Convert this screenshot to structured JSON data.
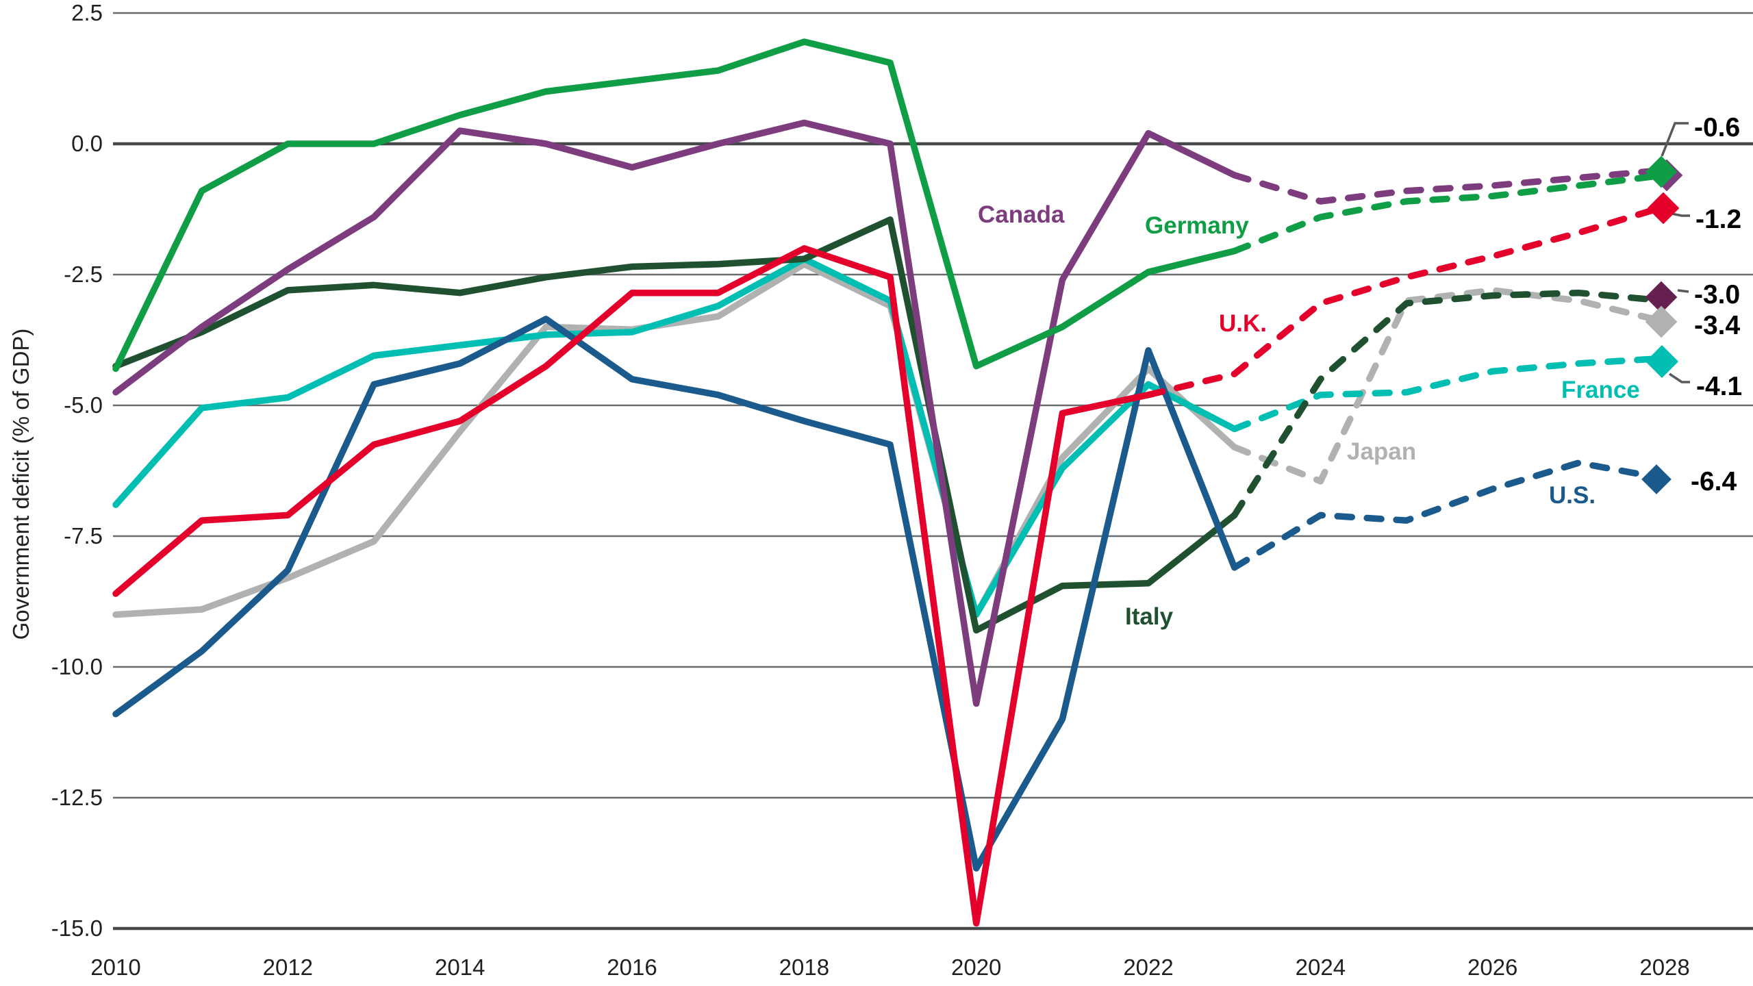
{
  "y_axis_title": "Government deficit (% of GDP)",
  "axis": {
    "y_tick_labels": [
      "2.5",
      "0.0",
      "-2.5",
      "-5.0",
      "-7.5",
      "-10.0",
      "-12.5",
      "-15.0"
    ],
    "y_tick_values": [
      2.5,
      0.0,
      -2.5,
      -5.0,
      -7.5,
      -10.0,
      -12.5,
      -15.0
    ],
    "x_tick_labels": [
      "2010",
      "2012",
      "2014",
      "2016",
      "2018",
      "2020",
      "2022",
      "2024",
      "2026",
      "2028"
    ],
    "x_tick_values": [
      2010,
      2012,
      2014,
      2016,
      2018,
      2020,
      2022,
      2024,
      2026,
      2028
    ]
  },
  "colors": {
    "grid": "#6A6B6D",
    "zero_line": "#47484A",
    "axis_line": "#47484A",
    "tick_text": "#231F20",
    "value_label_text": "#000000",
    "callout": "#58595B",
    "background": "#FFFFFF"
  },
  "chart_data": {
    "type": "line",
    "title": "",
    "xlabel": "",
    "ylabel": "Government deficit (% of GDP)",
    "xlim": [
      2010,
      2028
    ],
    "ylim": [
      -15.0,
      2.5
    ],
    "grid": "horizontal",
    "legend_position": "inline-labels",
    "note": "Solid lines are history; dashed lines after last_actual_year are projections; diamond markers at 2028 with value labels.",
    "x": [
      2010,
      2011,
      2012,
      2013,
      2014,
      2015,
      2016,
      2017,
      2018,
      2019,
      2020,
      2021,
      2022,
      2023,
      2024,
      2025,
      2026,
      2027,
      2028
    ],
    "series": [
      {
        "name": "Japan",
        "label": "Japan",
        "color": "#B0B2B2",
        "marker_color": "#B0B2B2",
        "end_label": "-3.4",
        "last_actual_year": 2023,
        "values": [
          -9.0,
          -8.9,
          -8.3,
          -7.6,
          -5.5,
          -3.5,
          -3.55,
          -3.3,
          -2.3,
          -3.1,
          -9.0,
          -6.0,
          -4.3,
          -5.8,
          -6.45,
          -3.0,
          -2.8,
          -3.0,
          -3.4
        ]
      },
      {
        "name": "France",
        "label": "France",
        "color": "#00BFB2",
        "marker_color": "#00BFB2",
        "end_label": "-4.1",
        "last_actual_year": 2023,
        "values": [
          -6.9,
          -5.05,
          -4.85,
          -4.05,
          -3.85,
          -3.65,
          -3.6,
          -3.1,
          -2.2,
          -3.0,
          -9.0,
          -6.2,
          -4.6,
          -5.45,
          -4.8,
          -4.75,
          -4.35,
          -4.2,
          -4.1
        ]
      },
      {
        "name": "Italy",
        "label": "Italy",
        "color": "#1F5130",
        "marker_color": "#65204F",
        "end_label": "-3.0",
        "last_actual_year": 2023,
        "values": [
          -4.25,
          -3.6,
          -2.8,
          -2.7,
          -2.85,
          -2.55,
          -2.35,
          -2.3,
          -2.2,
          -1.45,
          -9.3,
          -8.45,
          -8.4,
          -7.1,
          -4.5,
          -3.05,
          -2.9,
          -2.85,
          -3.0
        ]
      },
      {
        "name": "U.S.",
        "label": "U.S.",
        "color": "#1A5A8C",
        "marker_color": "#1A5A8C",
        "end_label": "-6.4",
        "last_actual_year": 2023,
        "values": [
          -10.9,
          -9.7,
          -8.15,
          -4.6,
          -4.2,
          -3.35,
          -4.5,
          -4.8,
          -5.3,
          -5.75,
          -13.85,
          -11.0,
          -3.95,
          -8.1,
          -7.1,
          -7.2,
          -6.6,
          -6.1,
          -6.4
        ]
      },
      {
        "name": "U.K.",
        "label": "U.K.",
        "color": "#E4002B",
        "marker_color": "#E4002B",
        "end_label": "-1.2",
        "last_actual_year": 2022,
        "values": [
          -8.6,
          -7.2,
          -7.1,
          -5.75,
          -5.3,
          -4.25,
          -2.85,
          -2.85,
          -2.0,
          -2.55,
          -14.9,
          -5.15,
          -4.8,
          -4.4,
          -3.05,
          -2.55,
          -2.15,
          -1.7,
          -1.2
        ]
      },
      {
        "name": "Canada",
        "label": "Canada",
        "color": "#7D3C7D",
        "marker_color": "#7D3C7D",
        "end_label": null,
        "last_actual_year": 2023,
        "values": [
          -4.75,
          -3.5,
          -2.4,
          -1.4,
          0.25,
          0.0,
          -0.45,
          0.0,
          0.4,
          0.0,
          -10.7,
          -2.6,
          0.2,
          -0.6,
          -1.1,
          -0.9,
          -0.8,
          -0.65,
          -0.5
        ]
      },
      {
        "name": "Germany",
        "label": "Germany",
        "color": "#0F9D45",
        "marker_color": "#0F9D45",
        "end_label": "-0.6",
        "last_actual_year": 2023,
        "values": [
          -4.3,
          -0.9,
          0.0,
          0.0,
          0.55,
          1.0,
          1.2,
          1.4,
          1.95,
          1.55,
          -4.25,
          -3.5,
          -2.45,
          -2.05,
          -1.4,
          -1.1,
          -1.0,
          -0.8,
          -0.6
        ]
      }
    ]
  }
}
